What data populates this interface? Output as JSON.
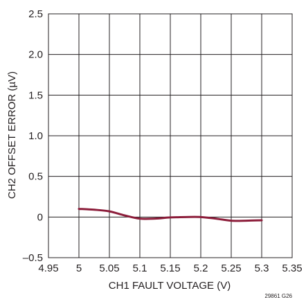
{
  "chart_data": {
    "type": "line",
    "xlabel": "CH1 FAULT VOLTAGE (V)",
    "ylabel": "CH2 OFFSET ERROR (µV)",
    "xlim": [
      4.95,
      5.35
    ],
    "ylim": [
      -0.5,
      2.5
    ],
    "x_ticks": [
      "4.95",
      "5",
      "5.05",
      "5.1",
      "5.15",
      "5.2",
      "5.25",
      "5.3",
      "5.35"
    ],
    "y_ticks": [
      "–0.5",
      "0",
      "0.5",
      "1.0",
      "1.5",
      "2.0",
      "2.5"
    ],
    "x_tick_values": [
      4.95,
      5.0,
      5.05,
      5.1,
      5.15,
      5.2,
      5.25,
      5.3,
      5.35
    ],
    "y_tick_values": [
      -0.5,
      0,
      0.5,
      1.0,
      1.5,
      2.0,
      2.5
    ],
    "grid": true,
    "series": [
      {
        "color": "#8c1d3a",
        "x": [
          5.0,
          5.025,
          5.05,
          5.075,
          5.1,
          5.125,
          5.15,
          5.175,
          5.2,
          5.225,
          5.25,
          5.275,
          5.3
        ],
        "y": [
          0.1,
          0.09,
          0.07,
          0.02,
          -0.02,
          -0.02,
          -0.005,
          0.0,
          0.0,
          -0.02,
          -0.045,
          -0.045,
          -0.04
        ]
      }
    ]
  },
  "footnote": "29861 G26"
}
